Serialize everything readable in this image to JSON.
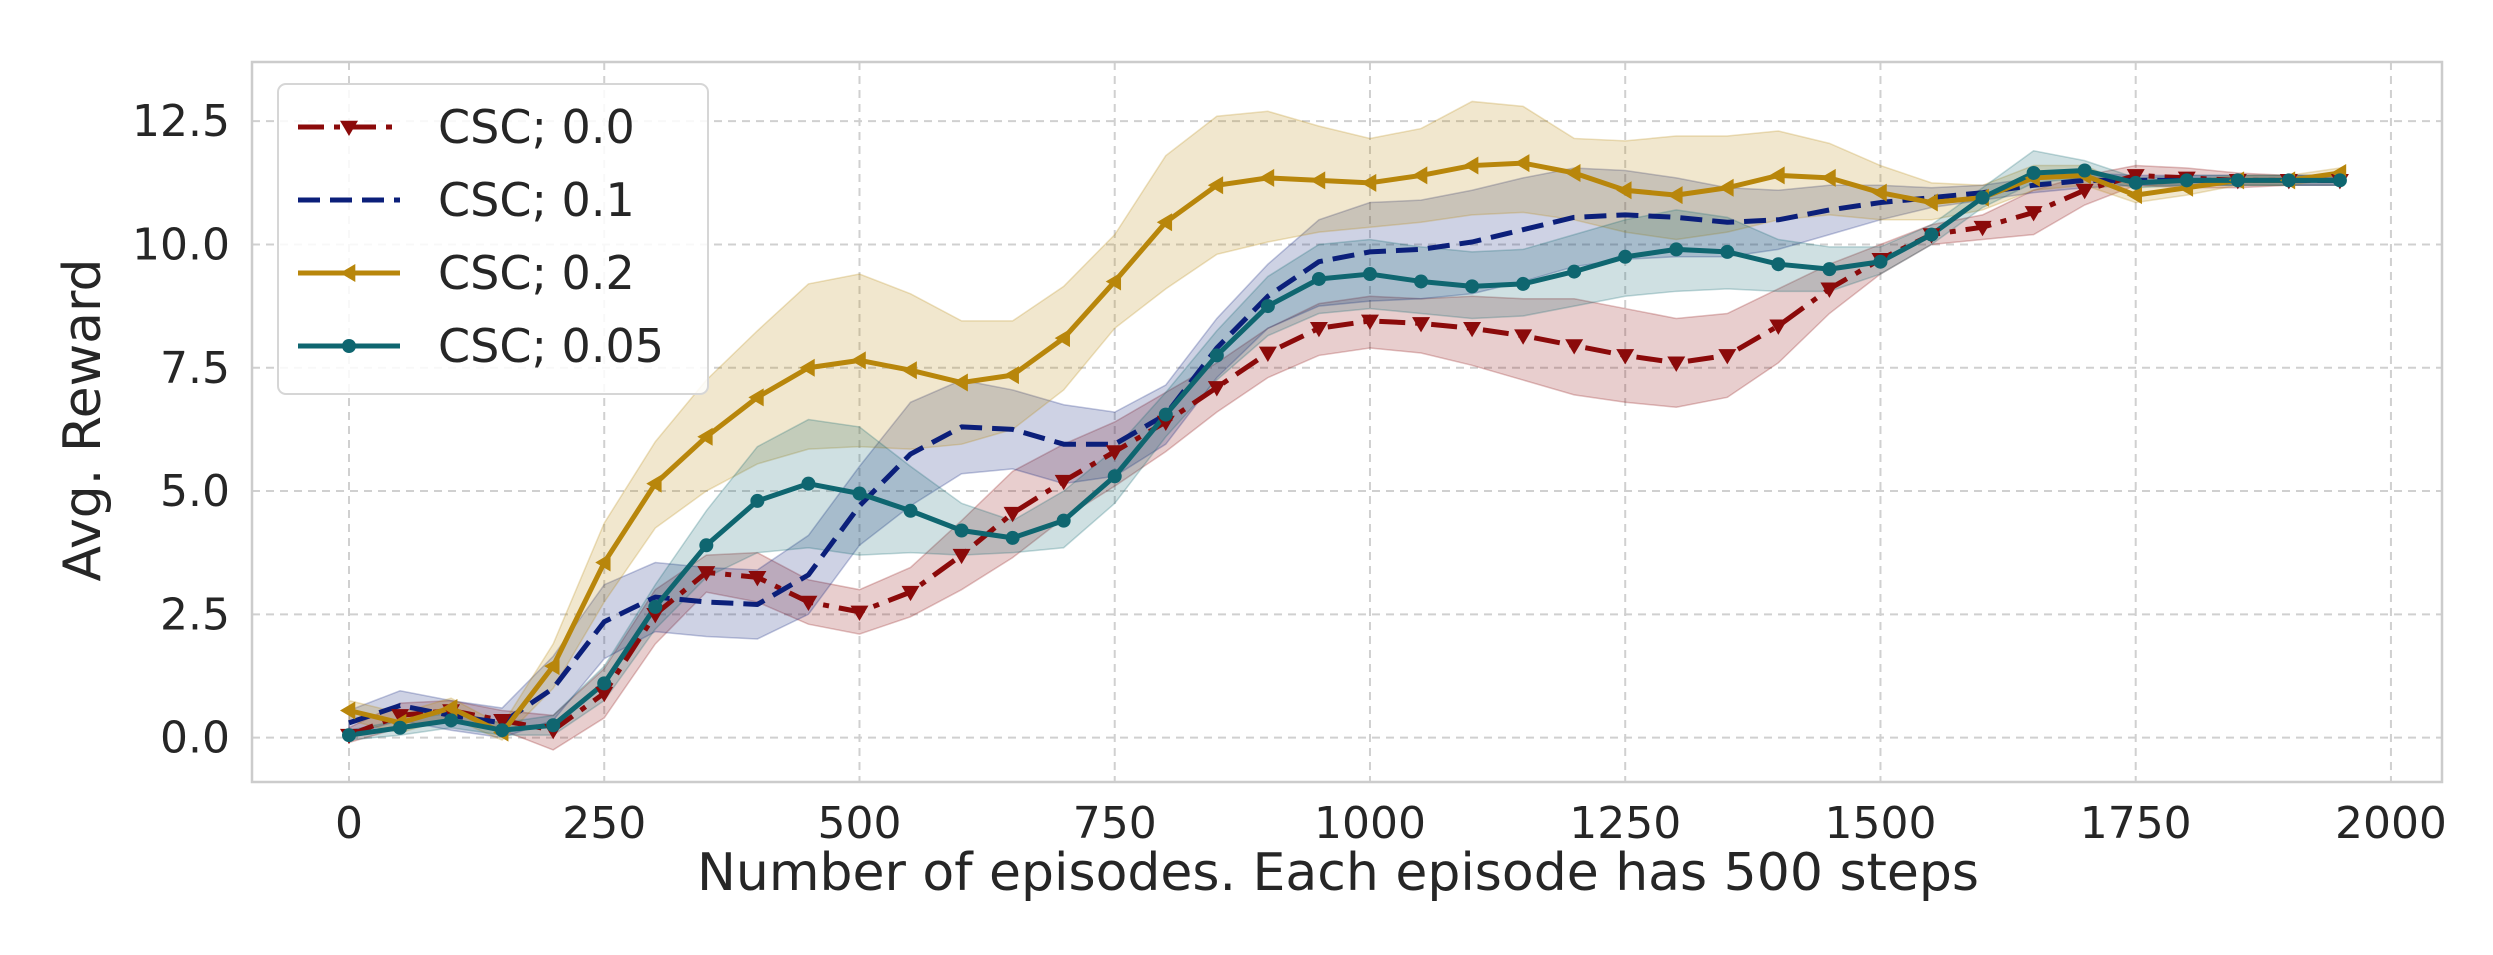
{
  "chart_data": {
    "type": "line",
    "title": "",
    "xlabel": "Number of episodes. Each episode has 500 steps",
    "ylabel": "Avg. Reward",
    "xlim": [
      -95,
      2050
    ],
    "ylim": [
      -0.9,
      13.7
    ],
    "xticks": [
      0,
      250,
      500,
      750,
      1000,
      1250,
      1500,
      1750,
      2000
    ],
    "yticks": [
      0.0,
      2.5,
      5.0,
      7.5,
      10.0,
      12.5
    ],
    "xtick_labels": [
      "0",
      "250",
      "500",
      "750",
      "1000",
      "1250",
      "1500",
      "1750",
      "2000"
    ],
    "ytick_labels": [
      "0.0",
      "2.5",
      "5.0",
      "7.5",
      "10.0",
      "12.5"
    ],
    "grid": true,
    "legend_position": "top-left",
    "x": [
      0,
      50,
      100,
      150,
      200,
      250,
      300,
      350,
      400,
      450,
      500,
      550,
      600,
      650,
      700,
      750,
      800,
      850,
      900,
      950,
      1000,
      1050,
      1100,
      1150,
      1200,
      1250,
      1300,
      1350,
      1400,
      1450,
      1500,
      1550,
      1600,
      1650,
      1700,
      1750,
      1800,
      1850,
      1900,
      1950
    ],
    "series": [
      {
        "name": "CSC; 0.0",
        "color": "#8b0a0a",
        "marker": "triangle-down",
        "dash": "dashdot",
        "values": [
          0.05,
          0.45,
          0.55,
          0.35,
          0.15,
          0.9,
          2.5,
          3.35,
          3.25,
          2.75,
          2.55,
          2.95,
          3.7,
          4.55,
          5.2,
          5.8,
          6.4,
          7.1,
          7.8,
          8.3,
          8.45,
          8.4,
          8.3,
          8.15,
          7.95,
          7.75,
          7.6,
          7.75,
          8.35,
          9.1,
          9.7,
          10.2,
          10.35,
          10.65,
          11.1,
          11.4,
          11.35,
          11.3,
          11.3,
          11.3
        ],
        "lower": [
          -0.1,
          0.2,
          0.35,
          0.15,
          -0.25,
          0.4,
          1.9,
          2.95,
          2.75,
          2.3,
          2.1,
          2.45,
          3.0,
          3.65,
          4.45,
          5.1,
          5.8,
          6.6,
          7.3,
          7.75,
          7.9,
          7.8,
          7.55,
          7.25,
          6.95,
          6.8,
          6.7,
          6.9,
          7.6,
          8.6,
          9.4,
          10.0,
          10.1,
          10.2,
          10.8,
          11.2,
          11.15,
          11.15,
          11.2,
          11.2
        ],
        "upper": [
          0.2,
          0.7,
          0.75,
          0.55,
          0.45,
          1.4,
          3.0,
          3.7,
          3.75,
          3.2,
          3.0,
          3.45,
          4.4,
          5.4,
          5.95,
          6.4,
          7.0,
          7.6,
          8.3,
          8.8,
          8.95,
          8.9,
          8.95,
          8.9,
          8.9,
          8.7,
          8.5,
          8.6,
          9.1,
          9.6,
          10.0,
          10.4,
          10.6,
          11.1,
          11.4,
          11.6,
          11.55,
          11.45,
          11.4,
          11.4
        ]
      },
      {
        "name": "CSC; 0.1",
        "color": "#0b1f7a",
        "marker": "none",
        "dash": "dashed",
        "values": [
          0.3,
          0.65,
          0.45,
          0.3,
          1.0,
          2.35,
          2.85,
          2.75,
          2.7,
          3.3,
          4.7,
          5.75,
          6.3,
          6.25,
          5.95,
          5.95,
          6.55,
          7.9,
          8.95,
          9.65,
          9.85,
          9.9,
          10.05,
          10.3,
          10.55,
          10.6,
          10.55,
          10.45,
          10.5,
          10.7,
          10.85,
          10.95,
          11.05,
          11.2,
          11.3,
          11.3,
          11.3,
          11.3,
          11.3,
          11.3
        ],
        "lower": [
          0.05,
          0.35,
          0.15,
          0.0,
          0.35,
          1.6,
          2.15,
          2.05,
          2.0,
          2.5,
          3.9,
          4.7,
          5.35,
          5.45,
          5.15,
          5.3,
          5.95,
          7.3,
          8.3,
          8.75,
          8.85,
          8.9,
          9.0,
          9.25,
          9.55,
          9.7,
          9.75,
          9.75,
          9.9,
          10.2,
          10.5,
          10.75,
          10.9,
          11.05,
          11.15,
          11.2,
          11.2,
          11.2,
          11.2,
          11.2
        ],
        "upper": [
          0.55,
          0.95,
          0.75,
          0.6,
          1.65,
          3.1,
          3.55,
          3.45,
          3.4,
          4.1,
          5.5,
          6.8,
          7.25,
          7.05,
          6.75,
          6.6,
          7.15,
          8.5,
          9.6,
          10.5,
          10.85,
          10.9,
          11.1,
          11.35,
          11.55,
          11.5,
          11.35,
          11.15,
          11.1,
          11.2,
          11.2,
          11.15,
          11.2,
          11.35,
          11.45,
          11.4,
          11.4,
          11.4,
          11.4,
          11.4
        ]
      },
      {
        "name": "CSC; 0.2",
        "color": "#b8860b",
        "marker": "triangle-left",
        "dash": "solid",
        "values": [
          0.55,
          0.3,
          0.6,
          0.1,
          1.45,
          3.55,
          5.15,
          6.1,
          6.9,
          7.5,
          7.65,
          7.45,
          7.2,
          7.35,
          8.1,
          9.25,
          10.45,
          11.2,
          11.35,
          11.3,
          11.25,
          11.4,
          11.6,
          11.65,
          11.45,
          11.1,
          11.0,
          11.15,
          11.4,
          11.35,
          11.05,
          10.85,
          10.95,
          11.35,
          11.4,
          11.0,
          11.15,
          11.3,
          11.3,
          11.45
        ],
        "lower": [
          0.35,
          0.1,
          0.4,
          -0.05,
          1.0,
          2.75,
          4.25,
          5.0,
          5.55,
          5.85,
          5.9,
          5.85,
          5.95,
          6.25,
          7.05,
          8.3,
          9.1,
          9.8,
          10.05,
          10.25,
          10.35,
          10.45,
          10.6,
          10.65,
          10.5,
          10.25,
          10.1,
          10.25,
          10.5,
          10.6,
          10.5,
          10.5,
          10.7,
          11.1,
          11.2,
          10.85,
          11.0,
          11.2,
          11.2,
          11.35
        ],
        "upper": [
          0.75,
          0.5,
          0.8,
          0.25,
          1.9,
          4.35,
          6.0,
          7.25,
          8.25,
          9.2,
          9.4,
          9.0,
          8.45,
          8.45,
          9.15,
          10.2,
          11.8,
          12.6,
          12.7,
          12.4,
          12.15,
          12.35,
          12.9,
          12.8,
          12.15,
          12.1,
          12.2,
          12.2,
          12.3,
          12.05,
          11.6,
          11.25,
          11.2,
          11.6,
          11.6,
          11.15,
          11.3,
          11.4,
          11.4,
          11.55
        ]
      },
      {
        "name": "CSC; 0.05",
        "color": "#0f6670",
        "marker": "circle",
        "dash": "solid",
        "values": [
          0.05,
          0.2,
          0.35,
          0.15,
          0.25,
          1.1,
          2.65,
          3.9,
          4.8,
          5.15,
          4.95,
          4.6,
          4.2,
          4.05,
          4.4,
          5.3,
          6.55,
          7.75,
          8.75,
          9.3,
          9.4,
          9.25,
          9.15,
          9.2,
          9.45,
          9.75,
          9.9,
          9.85,
          9.6,
          9.5,
          9.65,
          10.2,
          10.95,
          11.45,
          11.5,
          11.25,
          11.3,
          11.3,
          11.3,
          11.3
        ],
        "lower": [
          -0.05,
          0.05,
          0.2,
          0.05,
          0.05,
          0.75,
          2.2,
          3.25,
          3.75,
          3.85,
          3.7,
          3.75,
          3.7,
          3.75,
          3.85,
          4.75,
          6.1,
          7.25,
          8.15,
          8.6,
          8.7,
          8.6,
          8.5,
          8.55,
          8.75,
          8.95,
          9.05,
          9.1,
          9.05,
          9.05,
          9.4,
          10.0,
          10.75,
          11.25,
          11.35,
          11.15,
          11.2,
          11.2,
          11.2,
          11.2
        ],
        "upper": [
          0.15,
          0.35,
          0.5,
          0.3,
          0.45,
          1.45,
          3.1,
          4.6,
          5.9,
          6.45,
          6.3,
          5.5,
          4.75,
          4.4,
          5.0,
          5.85,
          7.0,
          8.25,
          9.35,
          10.0,
          10.1,
          9.95,
          9.85,
          9.9,
          10.2,
          10.5,
          10.7,
          10.55,
          10.1,
          9.95,
          9.95,
          10.4,
          11.15,
          11.9,
          11.7,
          11.35,
          11.4,
          11.4,
          11.4,
          11.4
        ]
      }
    ]
  }
}
